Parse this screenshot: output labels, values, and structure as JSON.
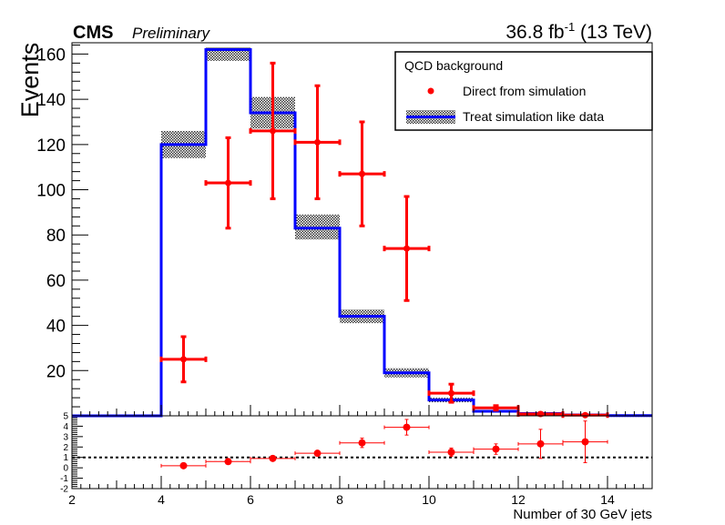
{
  "header": {
    "experiment": "CMS",
    "status": "Preliminary",
    "lumi_value": "36.8 fb",
    "lumi_exp": "-1",
    "energy": " (13 TeV)"
  },
  "colors": {
    "simulation_points": "#ff0000",
    "treated_line": "#0000ff",
    "uncertainty_band": "#333333",
    "reference_line": "#000000"
  },
  "chart_data": [
    {
      "type": "line",
      "panel": "main",
      "xlabel": "",
      "ylabel": "Events",
      "xlim": [
        2,
        15
      ],
      "ylim": [
        0,
        165
      ],
      "y_ticks": [
        20,
        40,
        60,
        80,
        100,
        120,
        140,
        160
      ],
      "legend": {
        "placement": "top-right",
        "header": "QCD background",
        "entries": [
          {
            "label": "Direct from simulation",
            "style": "point"
          },
          {
            "label": "Treat simulation like data",
            "style": "line-band"
          }
        ]
      },
      "series": [
        {
          "name": "Direct from simulation",
          "style": "points-with-errors",
          "x": [
            4.5,
            5.5,
            6.5,
            7.5,
            8.5,
            9.5,
            10.5,
            11.5,
            12.5,
            13.5
          ],
          "y": [
            25,
            103,
            126,
            121,
            107,
            74,
            10,
            3.5,
            0.8,
            0.3
          ],
          "yerr": [
            10,
            20,
            30,
            25,
            23,
            23,
            4,
            1,
            0.5,
            0.3
          ]
        },
        {
          "name": "Treat simulation like data",
          "style": "step-with-band",
          "bin_edges": [
            2,
            3,
            4,
            5,
            6,
            7,
            8,
            9,
            10,
            11,
            12,
            13,
            14,
            15
          ],
          "values": [
            0,
            0,
            120,
            162,
            134,
            83,
            44,
            19,
            7,
            2,
            1,
            0.4,
            0.1
          ],
          "band_low": [
            0,
            0,
            114,
            157,
            127,
            78,
            41,
            17,
            6,
            1.5,
            0.7,
            0.2,
            0.05
          ],
          "band_high": [
            0,
            0,
            126,
            163,
            141,
            89,
            47,
            21,
            8,
            2.5,
            1.3,
            0.6,
            0.15
          ]
        }
      ]
    },
    {
      "type": "scatter",
      "panel": "ratio",
      "xlabel": "Number of 30 GeV jets",
      "ylabel": "",
      "xlim": [
        2,
        15
      ],
      "ylim": [
        -2,
        5
      ],
      "x_ticks": [
        2,
        4,
        6,
        8,
        10,
        12,
        14
      ],
      "y_ticks": [
        -2,
        -1,
        0,
        1,
        2,
        3,
        4,
        5
      ],
      "reference_line": 1,
      "series": [
        {
          "name": "",
          "x": [
            4.5,
            5.5,
            6.5,
            7.5,
            8.5,
            9.5,
            10.5,
            11.5,
            12.5,
            13.5
          ],
          "y": [
            0.2,
            0.6,
            0.9,
            1.4,
            2.4,
            3.9,
            1.5,
            1.8,
            2.3,
            2.5
          ],
          "yerr": [
            0.1,
            0.15,
            0.2,
            0.25,
            0.45,
            0.75,
            0.4,
            0.5,
            1.4,
            2.0
          ]
        }
      ]
    }
  ]
}
